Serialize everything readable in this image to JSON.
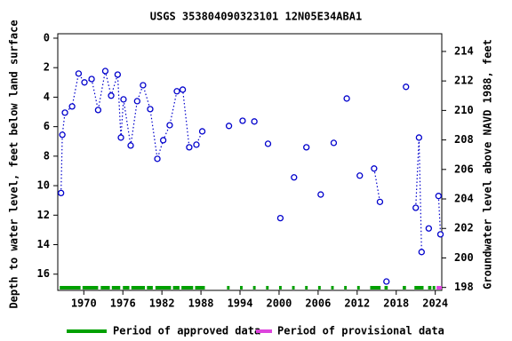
{
  "chart_data": {
    "type": "scatter",
    "title": "USGS 353804090323101 12N05E34ABA1",
    "y_label": "Depth to water level, feet below land surface",
    "y2_label": "Groundwater level above NAVD 1988, feet",
    "y_inverted": true,
    "xlim": [
      1966,
      2025
    ],
    "xticks": [
      1970,
      1976,
      1982,
      1988,
      1994,
      2000,
      2006,
      2012,
      2018,
      2024
    ],
    "ylim": [
      -0.3,
      17.1
    ],
    "yticks": [
      0,
      2,
      4,
      6,
      8,
      10,
      12,
      14,
      16
    ],
    "y2lim": [
      197.8,
      215.2
    ],
    "y2ticks": [
      198,
      200,
      202,
      204,
      206,
      208,
      210,
      212,
      214
    ],
    "series": [
      {
        "color": "#0000cc",
        "x": [
          1966.5,
          1966.7,
          1967.1,
          1968.2,
          1969.2,
          1970.1,
          1971.2,
          1972.2,
          1973.3,
          1974.2,
          1975.2,
          1975.7,
          1976.1,
          1977.2,
          1978.2,
          1979.1,
          1980.2,
          1981.3,
          1982.2,
          1983.2,
          1984.3,
          1985.2,
          1986.2,
          1987.3,
          1988.2,
          null,
          1992.3,
          null,
          1994.4,
          null,
          1996.2,
          null,
          1998.3,
          null,
          2000.2,
          null,
          2002.3,
          null,
          2004.2,
          null,
          2006.4,
          null,
          2008.4,
          null,
          2010.4,
          null,
          2012.4,
          null,
          2014.6,
          2015.5,
          null,
          2016.5,
          null,
          2019.5,
          null,
          2021.0,
          2021.5,
          2021.9,
          null,
          2023.0,
          null,
          2024.5,
          2024.8
        ],
        "values": [
          10.5,
          6.55,
          5.05,
          4.63,
          2.4,
          3.0,
          2.77,
          4.87,
          2.23,
          3.9,
          2.47,
          6.74,
          4.15,
          7.28,
          4.27,
          3.19,
          4.81,
          8.18,
          6.92,
          5.9,
          3.6,
          3.49,
          7.4,
          7.22,
          6.32,
          null,
          5.95,
          null,
          5.6,
          null,
          5.65,
          null,
          7.16,
          null,
          12.2,
          null,
          9.44,
          null,
          7.4,
          null,
          10.6,
          null,
          7.1,
          null,
          4.09,
          null,
          9.32,
          null,
          8.84,
          11.1,
          null,
          16.5,
          null,
          3.3,
          null,
          11.5,
          6.74,
          14.5,
          null,
          12.9,
          null,
          10.7,
          13.3
        ]
      }
    ],
    "periods": [
      {
        "name": "Period of approved data",
        "color": "#00a000",
        "ranges": [
          [
            1966.3,
            1969.5
          ],
          [
            1969.8,
            1972.2
          ],
          [
            1972.6,
            1974
          ],
          [
            1974.3,
            1975.6
          ],
          [
            1976,
            1977
          ],
          [
            1977.3,
            1979.4
          ],
          [
            1979.7,
            1980.6
          ],
          [
            1981,
            1983.4
          ],
          [
            1983.7,
            1984.7
          ],
          [
            1985,
            1986.8
          ],
          [
            1987.1,
            1988.6
          ],
          [
            1992,
            1992.4
          ],
          [
            1994,
            1994.4
          ],
          [
            1996,
            1996.4
          ],
          [
            1998,
            1998.4
          ],
          [
            2000,
            2000.4
          ],
          [
            2002,
            2002.4
          ],
          [
            2004,
            2004.4
          ],
          [
            2006,
            2006.4
          ],
          [
            2008,
            2008.4
          ],
          [
            2010,
            2010.4
          ],
          [
            2012,
            2012.4
          ],
          [
            2014,
            2015.6
          ],
          [
            2016.2,
            2016.7
          ],
          [
            2019,
            2019.5
          ],
          [
            2020.8,
            2022.2
          ],
          [
            2022.9,
            2023.4
          ],
          [
            2023.6,
            2024
          ]
        ]
      },
      {
        "name": "Period of provisional data",
        "color": "#dd44dd",
        "ranges": [
          [
            2024.2,
            2025
          ]
        ]
      }
    ]
  }
}
